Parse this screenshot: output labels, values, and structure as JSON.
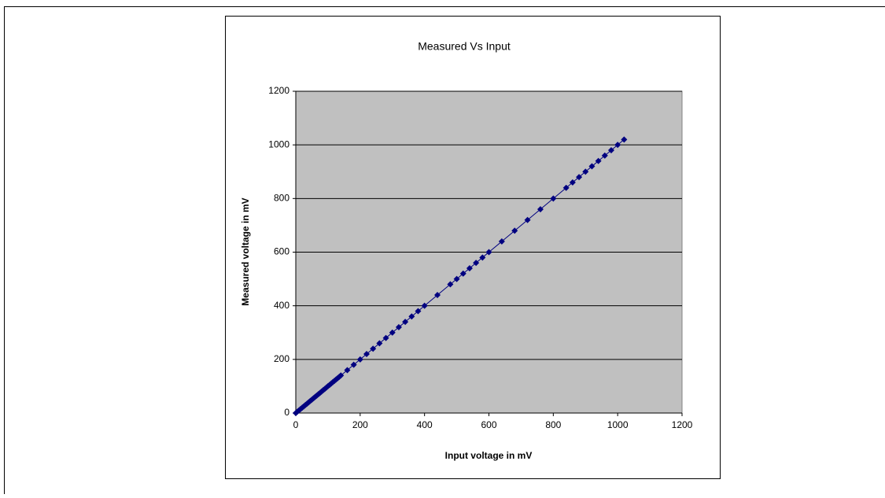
{
  "chart_data": {
    "type": "scatter",
    "title": "Measured Vs Input",
    "xlabel": "Input voltage in mV",
    "ylabel": "Measured voltage in mV",
    "x": [
      0,
      5,
      10,
      15,
      20,
      25,
      30,
      35,
      40,
      45,
      50,
      55,
      60,
      65,
      70,
      75,
      80,
      85,
      90,
      95,
      100,
      105,
      110,
      115,
      120,
      125,
      130,
      135,
      140,
      160,
      180,
      200,
      220,
      240,
      260,
      280,
      300,
      320,
      340,
      360,
      380,
      400,
      440,
      480,
      500,
      520,
      540,
      560,
      580,
      600,
      640,
      680,
      720,
      760,
      800,
      840,
      860,
      880,
      900,
      920,
      940,
      960,
      980,
      1000,
      1020
    ],
    "values": [
      0,
      5,
      10,
      15,
      20,
      25,
      30,
      35,
      40,
      45,
      50,
      55,
      60,
      65,
      70,
      75,
      80,
      85,
      90,
      95,
      100,
      105,
      110,
      115,
      120,
      125,
      130,
      135,
      140,
      160,
      180,
      200,
      220,
      240,
      260,
      280,
      300,
      320,
      340,
      360,
      380,
      400,
      440,
      480,
      500,
      520,
      540,
      560,
      580,
      600,
      640,
      680,
      720,
      760,
      800,
      840,
      860,
      880,
      900,
      920,
      940,
      960,
      980,
      1000,
      1020
    ],
    "color": "#000080",
    "xlim": [
      0,
      1200
    ],
    "xticks": [
      0,
      200,
      400,
      600,
      800,
      1000,
      1200
    ],
    "ylim": [
      0,
      1200
    ],
    "yticks": [
      0,
      200,
      400,
      600,
      800,
      1000,
      1200
    ],
    "grid": true,
    "plot_background": "#c0c0c0"
  }
}
